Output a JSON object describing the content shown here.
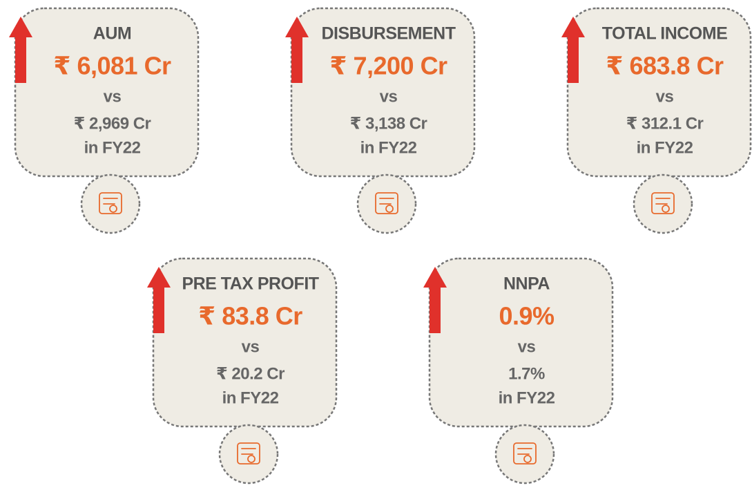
{
  "cards": [
    {
      "title": "AUM",
      "value": "₹ 6,081 Cr",
      "vs": "vs",
      "previous": "₹ 2,969 Cr",
      "period": "in FY22"
    },
    {
      "title": "DISBURSEMENT",
      "value": "₹ 7,200 Cr",
      "vs": "vs",
      "previous": "₹ 3,138 Cr",
      "period": "in FY22"
    },
    {
      "title": "TOTAL INCOME",
      "value": "₹ 683.8 Cr",
      "vs": "vs",
      "previous": "₹ 312.1 Cr",
      "period": "in FY22"
    },
    {
      "title": "PRE TAX PROFIT",
      "value": "₹ 83.8 Cr",
      "vs": "vs",
      "previous": "₹ 20.2 Cr",
      "period": "in FY22"
    },
    {
      "title": "NNPA",
      "value": "0.9%",
      "vs": "vs",
      "previous": "1.7%",
      "period": "in FY22"
    }
  ]
}
